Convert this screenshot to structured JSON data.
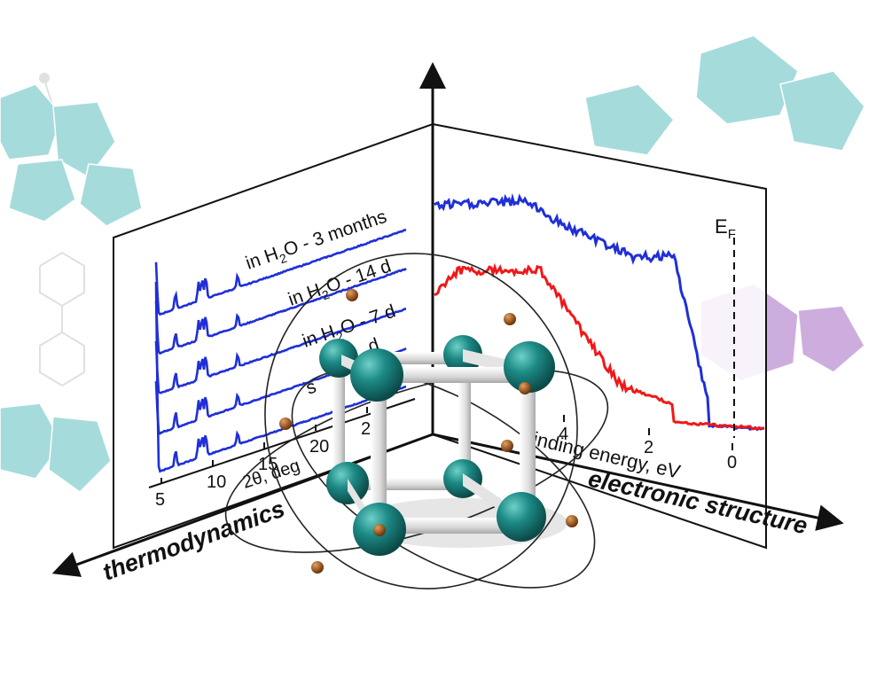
{
  "xrd_panel": {
    "series_labels": [
      {
        "text": "in H",
        "sub": "2",
        "rest": "O - 3 months"
      },
      {
        "text": "in H",
        "sub": "2",
        "rest": "O - 14 d"
      },
      {
        "text": "in H",
        "sub": "2",
        "rest": "O - 7 d"
      },
      {
        "text": "",
        "sub": "",
        "rest": "d"
      },
      {
        "text": "s",
        "sub": "",
        "rest": ""
      }
    ],
    "x_ticks": [
      "5",
      "10",
      "15",
      "20",
      "25"
    ],
    "x_axis_label": "2θ, deg",
    "line_color": "#1f2fd8"
  },
  "xps_panel": {
    "x_ticks": [
      "4",
      "2",
      "0"
    ],
    "x_axis_label": "binding energy, eV",
    "fermi_label": "E",
    "fermi_sub": "F",
    "series_colors": [
      "#1f2fd8",
      "#f01818"
    ]
  },
  "axis_labels": {
    "left": "thermodynamics",
    "right": "electronic structure"
  },
  "colors": {
    "atom": "#1d8a86",
    "electron": "#a0521c",
    "bond": "#e6e6e6",
    "background_polyhedra": "#5fbfc0",
    "background_polyhedra_violet": "#a66bc2"
  },
  "icons": {
    "crystal": "cubic-lattice-icon",
    "electron": "electron-minus-icon"
  }
}
